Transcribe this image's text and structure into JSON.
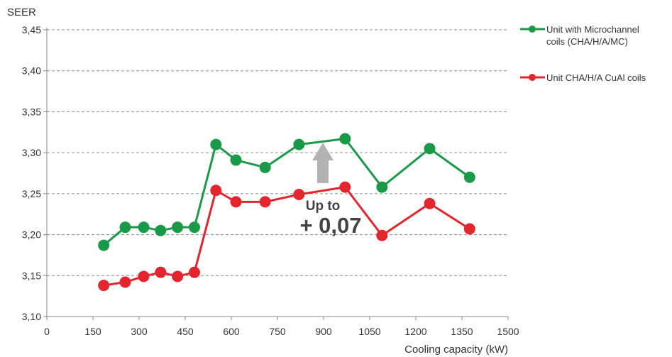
{
  "chart_data": {
    "type": "line",
    "ylabel": "SEER",
    "xlabel": "Cooling capacity (kW)",
    "xlim": [
      0,
      1500
    ],
    "ylim": [
      3.1,
      3.45
    ],
    "xticks": [
      0,
      150,
      300,
      450,
      600,
      750,
      900,
      1050,
      1200,
      1350,
      1500
    ],
    "xtick_labels": [
      "0",
      "150",
      "300",
      "450",
      "600",
      "750",
      "900",
      "1050",
      "1200",
      "1350",
      "1500"
    ],
    "yticks": [
      3.1,
      3.15,
      3.2,
      3.25,
      3.3,
      3.35,
      3.4,
      3.45
    ],
    "ytick_labels": [
      "3,10",
      "3,15",
      "3,20",
      "3,25",
      "3,30",
      "3,35",
      "3,40",
      "3,45"
    ],
    "grid": "horizontal dashed",
    "legend_position": "right",
    "series": [
      {
        "name": "Unit with Microchannel coils (CHA/H/A/MC)",
        "legend_lines": [
          "Unit with Microchannel",
          "coils (CHA/H/A/MC)"
        ],
        "color": "#1a9a48",
        "x": [
          185,
          255,
          315,
          370,
          425,
          480,
          550,
          615,
          710,
          820,
          970,
          1090,
          1245,
          1375
        ],
        "y": [
          3.187,
          3.209,
          3.209,
          3.205,
          3.209,
          3.209,
          3.31,
          3.291,
          3.282,
          3.31,
          3.317,
          3.258,
          3.305,
          3.27
        ]
      },
      {
        "name": "Unit CHA/H/A CuAl coils",
        "legend_lines": [
          "Unit CHA/H/A CuAl coils"
        ],
        "color": "#e3262d",
        "x": [
          185,
          255,
          315,
          370,
          425,
          480,
          550,
          615,
          710,
          820,
          970,
          1090,
          1245,
          1375
        ],
        "y": [
          3.138,
          3.142,
          3.149,
          3.154,
          3.149,
          3.154,
          3.254,
          3.24,
          3.24,
          3.249,
          3.258,
          3.199,
          3.238,
          3.207
        ]
      }
    ],
    "annotation": {
      "line1": "Up to",
      "line2": "+ 0,07",
      "arrow_color": "#b3b3b3"
    }
  }
}
